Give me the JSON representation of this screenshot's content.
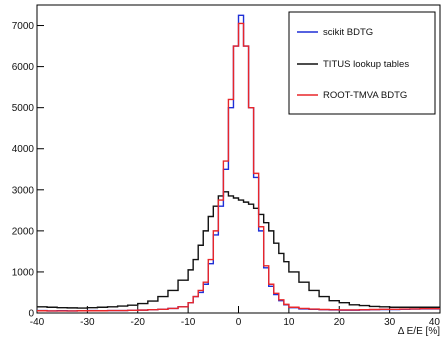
{
  "chart_data": {
    "type": "line",
    "xlabel": "Δ E/E [%]",
    "ylabel": "",
    "xlim": [
      -40,
      40
    ],
    "ylim": [
      0,
      7500
    ],
    "x_ticks": [
      -40,
      -30,
      -20,
      -10,
      0,
      10,
      20,
      30,
      40
    ],
    "y_ticks": [
      0,
      1000,
      2000,
      3000,
      4000,
      5000,
      6000,
      7000
    ],
    "grid": false,
    "legend_position": "top-right",
    "bin_edges": [
      -40,
      -38,
      -36,
      -34,
      -32,
      -30,
      -28,
      -26,
      -24,
      -22,
      -20,
      -18,
      -16,
      -14,
      -12,
      -10,
      -9,
      -8,
      -7,
      -6,
      -5,
      -4,
      -3,
      -2,
      -1,
      0,
      1,
      2,
      3,
      4,
      5,
      6,
      7,
      8,
      9,
      10,
      12,
      14,
      16,
      18,
      20,
      22,
      24,
      26,
      28,
      30,
      32,
      34,
      36,
      38,
      40
    ],
    "series": [
      {
        "name": "scikit BDTG",
        "color": "#1f2fd6",
        "values": [
          60,
          50,
          55,
          50,
          55,
          60,
          55,
          60,
          60,
          65,
          70,
          80,
          90,
          110,
          150,
          250,
          400,
          500,
          700,
          1200,
          1900,
          2600,
          3500,
          5000,
          6500,
          7250,
          6500,
          5000,
          3300,
          2000,
          1100,
          650,
          450,
          300,
          200,
          130,
          100,
          90,
          80,
          75,
          70,
          70,
          75,
          80,
          85,
          85,
          90,
          95,
          100,
          100
        ]
      },
      {
        "name": "TITUS lookup tables",
        "color": "#111111",
        "values": [
          150,
          140,
          130,
          125,
          120,
          130,
          140,
          150,
          170,
          190,
          230,
          290,
          400,
          550,
          800,
          1050,
          1300,
          1650,
          2000,
          2350,
          2600,
          2850,
          2950,
          2850,
          2800,
          2750,
          2700,
          2650,
          2550,
          2400,
          2200,
          2000,
          1700,
          1450,
          1250,
          1000,
          750,
          550,
          400,
          300,
          250,
          200,
          180,
          160,
          150,
          140,
          140,
          140,
          140,
          140
        ]
      },
      {
        "name": "ROOT-TMVA BDTG",
        "color": "#e8262a",
        "values": [
          55,
          50,
          50,
          50,
          55,
          55,
          55,
          60,
          60,
          65,
          70,
          80,
          90,
          110,
          150,
          250,
          400,
          550,
          750,
          1300,
          2000,
          2750,
          3700,
          5200,
          6500,
          7050,
          6500,
          5000,
          3400,
          2100,
          1150,
          700,
          480,
          320,
          210,
          140,
          110,
          95,
          85,
          80,
          75,
          75,
          80,
          85,
          90,
          90,
          95,
          100,
          105,
          105
        ]
      }
    ]
  }
}
